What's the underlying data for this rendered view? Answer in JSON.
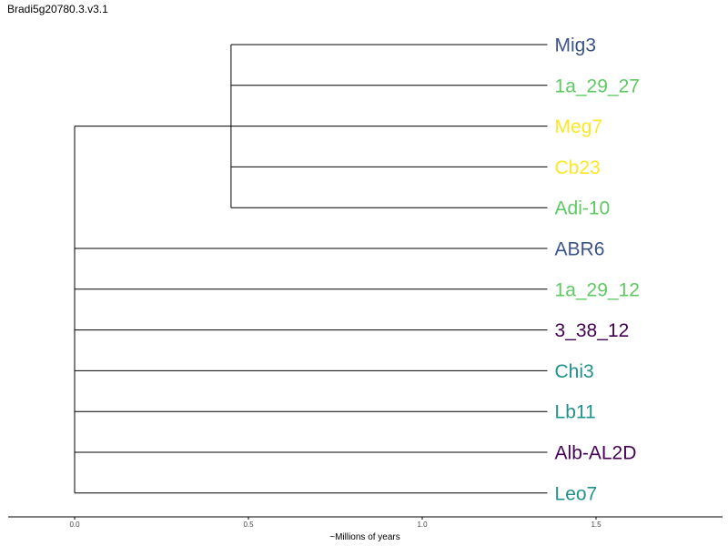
{
  "chart_data": {
    "type": "dendrogram",
    "title": "Bradi5g20780.3.v3.1",
    "xlabel": "~Millions of years",
    "xlim": [
      -0.19,
      1.86
    ],
    "x_ticks": [
      {
        "value": 0.0,
        "label": "0.0"
      },
      {
        "value": 0.5,
        "label": "0.5"
      },
      {
        "value": 1.0,
        "label": "1.0"
      },
      {
        "value": 1.5,
        "label": "1.5"
      }
    ],
    "leaf_tip_x": 1.36,
    "grid": false,
    "leaves": [
      {
        "name": "Mig3",
        "color": "#3b528b"
      },
      {
        "name": "1a_29_27",
        "color": "#5ec962"
      },
      {
        "name": "Meg7",
        "color": "#fde725"
      },
      {
        "name": "Cb23",
        "color": "#fde725"
      },
      {
        "name": "Adi-10",
        "color": "#5ec962"
      },
      {
        "name": "ABR6",
        "color": "#3b528b"
      },
      {
        "name": "1a_29_12",
        "color": "#5ec962"
      },
      {
        "name": "3_38_12",
        "color": "#440154"
      },
      {
        "name": "Chi3",
        "color": "#21918c"
      },
      {
        "name": "Lb11",
        "color": "#21918c"
      },
      {
        "name": "Alb-AL2D",
        "color": "#440154"
      },
      {
        "name": "Leo7",
        "color": "#21918c"
      }
    ],
    "clades": [
      {
        "node_x": 0.0,
        "leaves": [
          0,
          1,
          2,
          3,
          4,
          5,
          6,
          7,
          8,
          9,
          10,
          11
        ],
        "inner_clade_x": 0.45,
        "inner_clade_leaves": [
          0,
          1,
          2,
          3,
          4
        ]
      }
    ]
  }
}
